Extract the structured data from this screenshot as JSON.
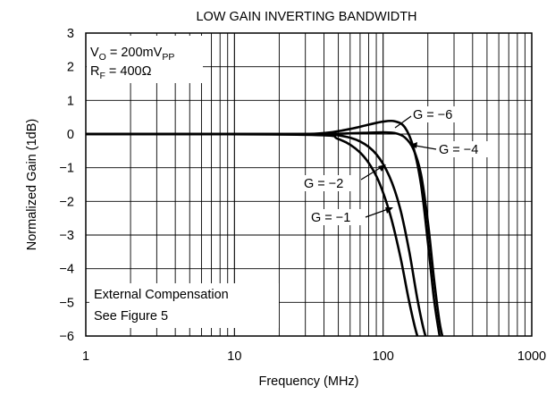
{
  "chart_data": {
    "type": "line",
    "title": "LOW GAIN INVERTING BANDWIDTH",
    "xlabel": "Frequency (MHz)",
    "ylabel": "Normalized Gain (1dB)",
    "x_scale": "log",
    "xlim": [
      1,
      1000
    ],
    "ylim": [
      -6,
      3
    ],
    "x_ticks": [
      1,
      10,
      100,
      1000
    ],
    "x_tick_labels": [
      "1",
      "10",
      "100",
      "1000"
    ],
    "y_ticks": [
      3,
      2,
      1,
      0,
      -1,
      -2,
      -3,
      -4,
      -5,
      -6
    ],
    "y_tick_labels": [
      "3",
      "2",
      "1",
      "0",
      "−1",
      "−2",
      "−3",
      "−4",
      "−5",
      "−6"
    ],
    "grid": true,
    "annotations": {
      "conditions": {
        "vo_prefix": "V",
        "vo_sub": "O",
        "vo_mid": " = 200mV",
        "vo_unit_sub": "PP",
        "rf_prefix": "R",
        "rf_sub": "F",
        "rf_rest": " = 400Ω"
      },
      "compensation_line1": "External Compensation",
      "compensation_line2": "See Figure 5"
    },
    "series": [
      {
        "name": "G = −6",
        "x": [
          1,
          20,
          40,
          60,
          80,
          100,
          120,
          140,
          160,
          180,
          200,
          220,
          240,
          250
        ],
        "y": [
          0,
          0,
          0.03,
          0.15,
          0.28,
          0.37,
          0.38,
          0.2,
          -0.4,
          -1.5,
          -3.2,
          -4.9,
          -6.0,
          -6.3
        ]
      },
      {
        "name": "G = −4",
        "x": [
          1,
          30,
          60,
          80,
          100,
          120,
          140,
          160,
          180,
          200,
          220,
          240,
          260
        ],
        "y": [
          0,
          0,
          0.02,
          0.04,
          0.05,
          0.03,
          -0.1,
          -0.45,
          -1.2,
          -2.6,
          -4.3,
          -5.6,
          -6.3
        ]
      },
      {
        "name": "G = −2",
        "x": [
          1,
          30,
          50,
          70,
          90,
          110,
          130,
          150,
          170,
          190,
          210
        ],
        "y": [
          0,
          0,
          -0.04,
          -0.22,
          -0.6,
          -1.25,
          -2.2,
          -3.5,
          -4.9,
          -5.9,
          -6.4
        ]
      },
      {
        "name": "G = −1",
        "x": [
          1,
          30,
          50,
          70,
          90,
          110,
          130,
          150,
          170,
          190
        ],
        "y": [
          0,
          -0.02,
          -0.15,
          -0.55,
          -1.25,
          -2.3,
          -3.6,
          -5.0,
          -6.0,
          -6.4
        ]
      }
    ]
  }
}
